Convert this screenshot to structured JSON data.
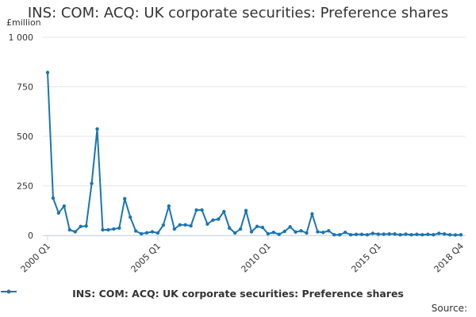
{
  "title": "INS: COM: ACQ: UK corporate securities: Preference shares",
  "source_label": "Source:",
  "colors": {
    "series": "#1a75b2",
    "grid": "#e6e6e6",
    "axis": "#ccd6eb",
    "text": "#333333"
  },
  "chart_data": {
    "type": "line",
    "title": "INS: COM: ACQ: UK corporate securities: Preference shares",
    "ylabel": "£million",
    "xlabel": "",
    "ylim": [
      0,
      1000
    ],
    "y_ticks": [
      0,
      250,
      500,
      750,
      1000
    ],
    "y_tick_labels": [
      "0",
      "250",
      "500",
      "750",
      "1 000"
    ],
    "x_tick_labels": [
      "2000 Q1",
      "2005 Q1",
      "2010 Q1",
      "2015 Q1",
      "2018 Q4"
    ],
    "x_tick_positions": [
      "2000 Q1",
      "2005 Q1",
      "2010 Q1",
      "2015 Q1",
      "2018 Q4"
    ],
    "grid": true,
    "legend_position": "bottom",
    "categories": [
      "2000 Q1",
      "2000 Q2",
      "2000 Q3",
      "2000 Q4",
      "2001 Q1",
      "2001 Q2",
      "2001 Q3",
      "2001 Q4",
      "2002 Q1",
      "2002 Q2",
      "2002 Q3",
      "2002 Q4",
      "2003 Q1",
      "2003 Q2",
      "2003 Q3",
      "2003 Q4",
      "2004 Q1",
      "2004 Q2",
      "2004 Q3",
      "2004 Q4",
      "2005 Q1",
      "2005 Q2",
      "2005 Q3",
      "2005 Q4",
      "2006 Q1",
      "2006 Q2",
      "2006 Q3",
      "2006 Q4",
      "2007 Q1",
      "2007 Q2",
      "2007 Q3",
      "2007 Q4",
      "2008 Q1",
      "2008 Q2",
      "2008 Q3",
      "2008 Q4",
      "2009 Q1",
      "2009 Q2",
      "2009 Q3",
      "2009 Q4",
      "2010 Q1",
      "2010 Q2",
      "2010 Q3",
      "2010 Q4",
      "2011 Q1",
      "2011 Q2",
      "2011 Q3",
      "2011 Q4",
      "2012 Q1",
      "2012 Q2",
      "2012 Q3",
      "2012 Q4",
      "2013 Q1",
      "2013 Q2",
      "2013 Q3",
      "2013 Q4",
      "2014 Q1",
      "2014 Q2",
      "2014 Q3",
      "2014 Q4",
      "2015 Q1",
      "2015 Q2",
      "2015 Q3",
      "2015 Q4",
      "2016 Q1",
      "2016 Q2",
      "2016 Q3",
      "2016 Q4",
      "2017 Q1",
      "2017 Q2",
      "2017 Q3",
      "2017 Q4",
      "2018 Q1",
      "2018 Q2",
      "2018 Q3",
      "2018 Q4"
    ],
    "series": [
      {
        "name": "INS: COM: ACQ: UK corporate securities: Preference shares",
        "values": [
          822,
          188,
          113,
          148,
          28,
          18,
          45,
          47,
          262,
          537,
          28,
          28,
          32,
          37,
          185,
          92,
          22,
          8,
          13,
          18,
          12,
          52,
          148,
          32,
          53,
          53,
          48,
          128,
          128,
          57,
          77,
          82,
          120,
          37,
          12,
          32,
          125,
          18,
          45,
          40,
          8,
          15,
          5,
          20,
          43,
          17,
          23,
          12,
          108,
          18,
          15,
          23,
          3,
          3,
          15,
          3,
          5,
          5,
          3,
          10,
          6,
          6,
          7,
          7,
          3,
          6,
          3,
          5,
          3,
          5,
          3,
          10,
          7,
          3,
          2,
          3
        ]
      }
    ]
  }
}
